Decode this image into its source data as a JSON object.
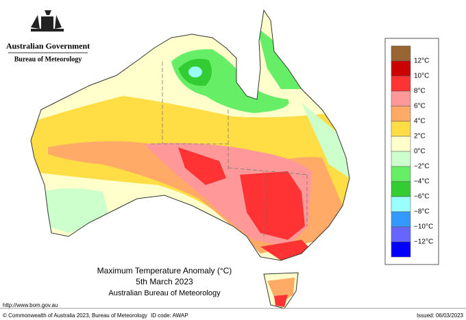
{
  "header": {
    "government": "Australian Government",
    "agency": "Bureau of Meteorology"
  },
  "map": {
    "title": "Maximum Temperature Anomaly (°C)",
    "date": "5th March 2023",
    "source": "Australian Bureau of Meteorology"
  },
  "legend": {
    "colors": [
      "#996633",
      "#cc0000",
      "#ff3333",
      "#ff9999",
      "#ffaa66",
      "#ffdd44",
      "#ffffcc",
      "#ccffcc",
      "#66ee66",
      "#33cc33",
      "#99ffff",
      "#3399ff",
      "#6666ff",
      "#0000ff"
    ],
    "labels": [
      "12°C",
      "10°C",
      "8°C",
      "6°C",
      "4°C",
      "2°C",
      "0°C",
      "−2°C",
      "−4°C",
      "−6°C",
      "−8°C",
      "−10°C",
      "−12°C"
    ]
  },
  "footer": {
    "url": "http://www.bom.gov.au",
    "copyright": "© Commonwealth of Australia 2023, Bureau of Meteorology",
    "id_code": "ID code: AWAP",
    "issued": "Issued: 06/03/2023"
  }
}
